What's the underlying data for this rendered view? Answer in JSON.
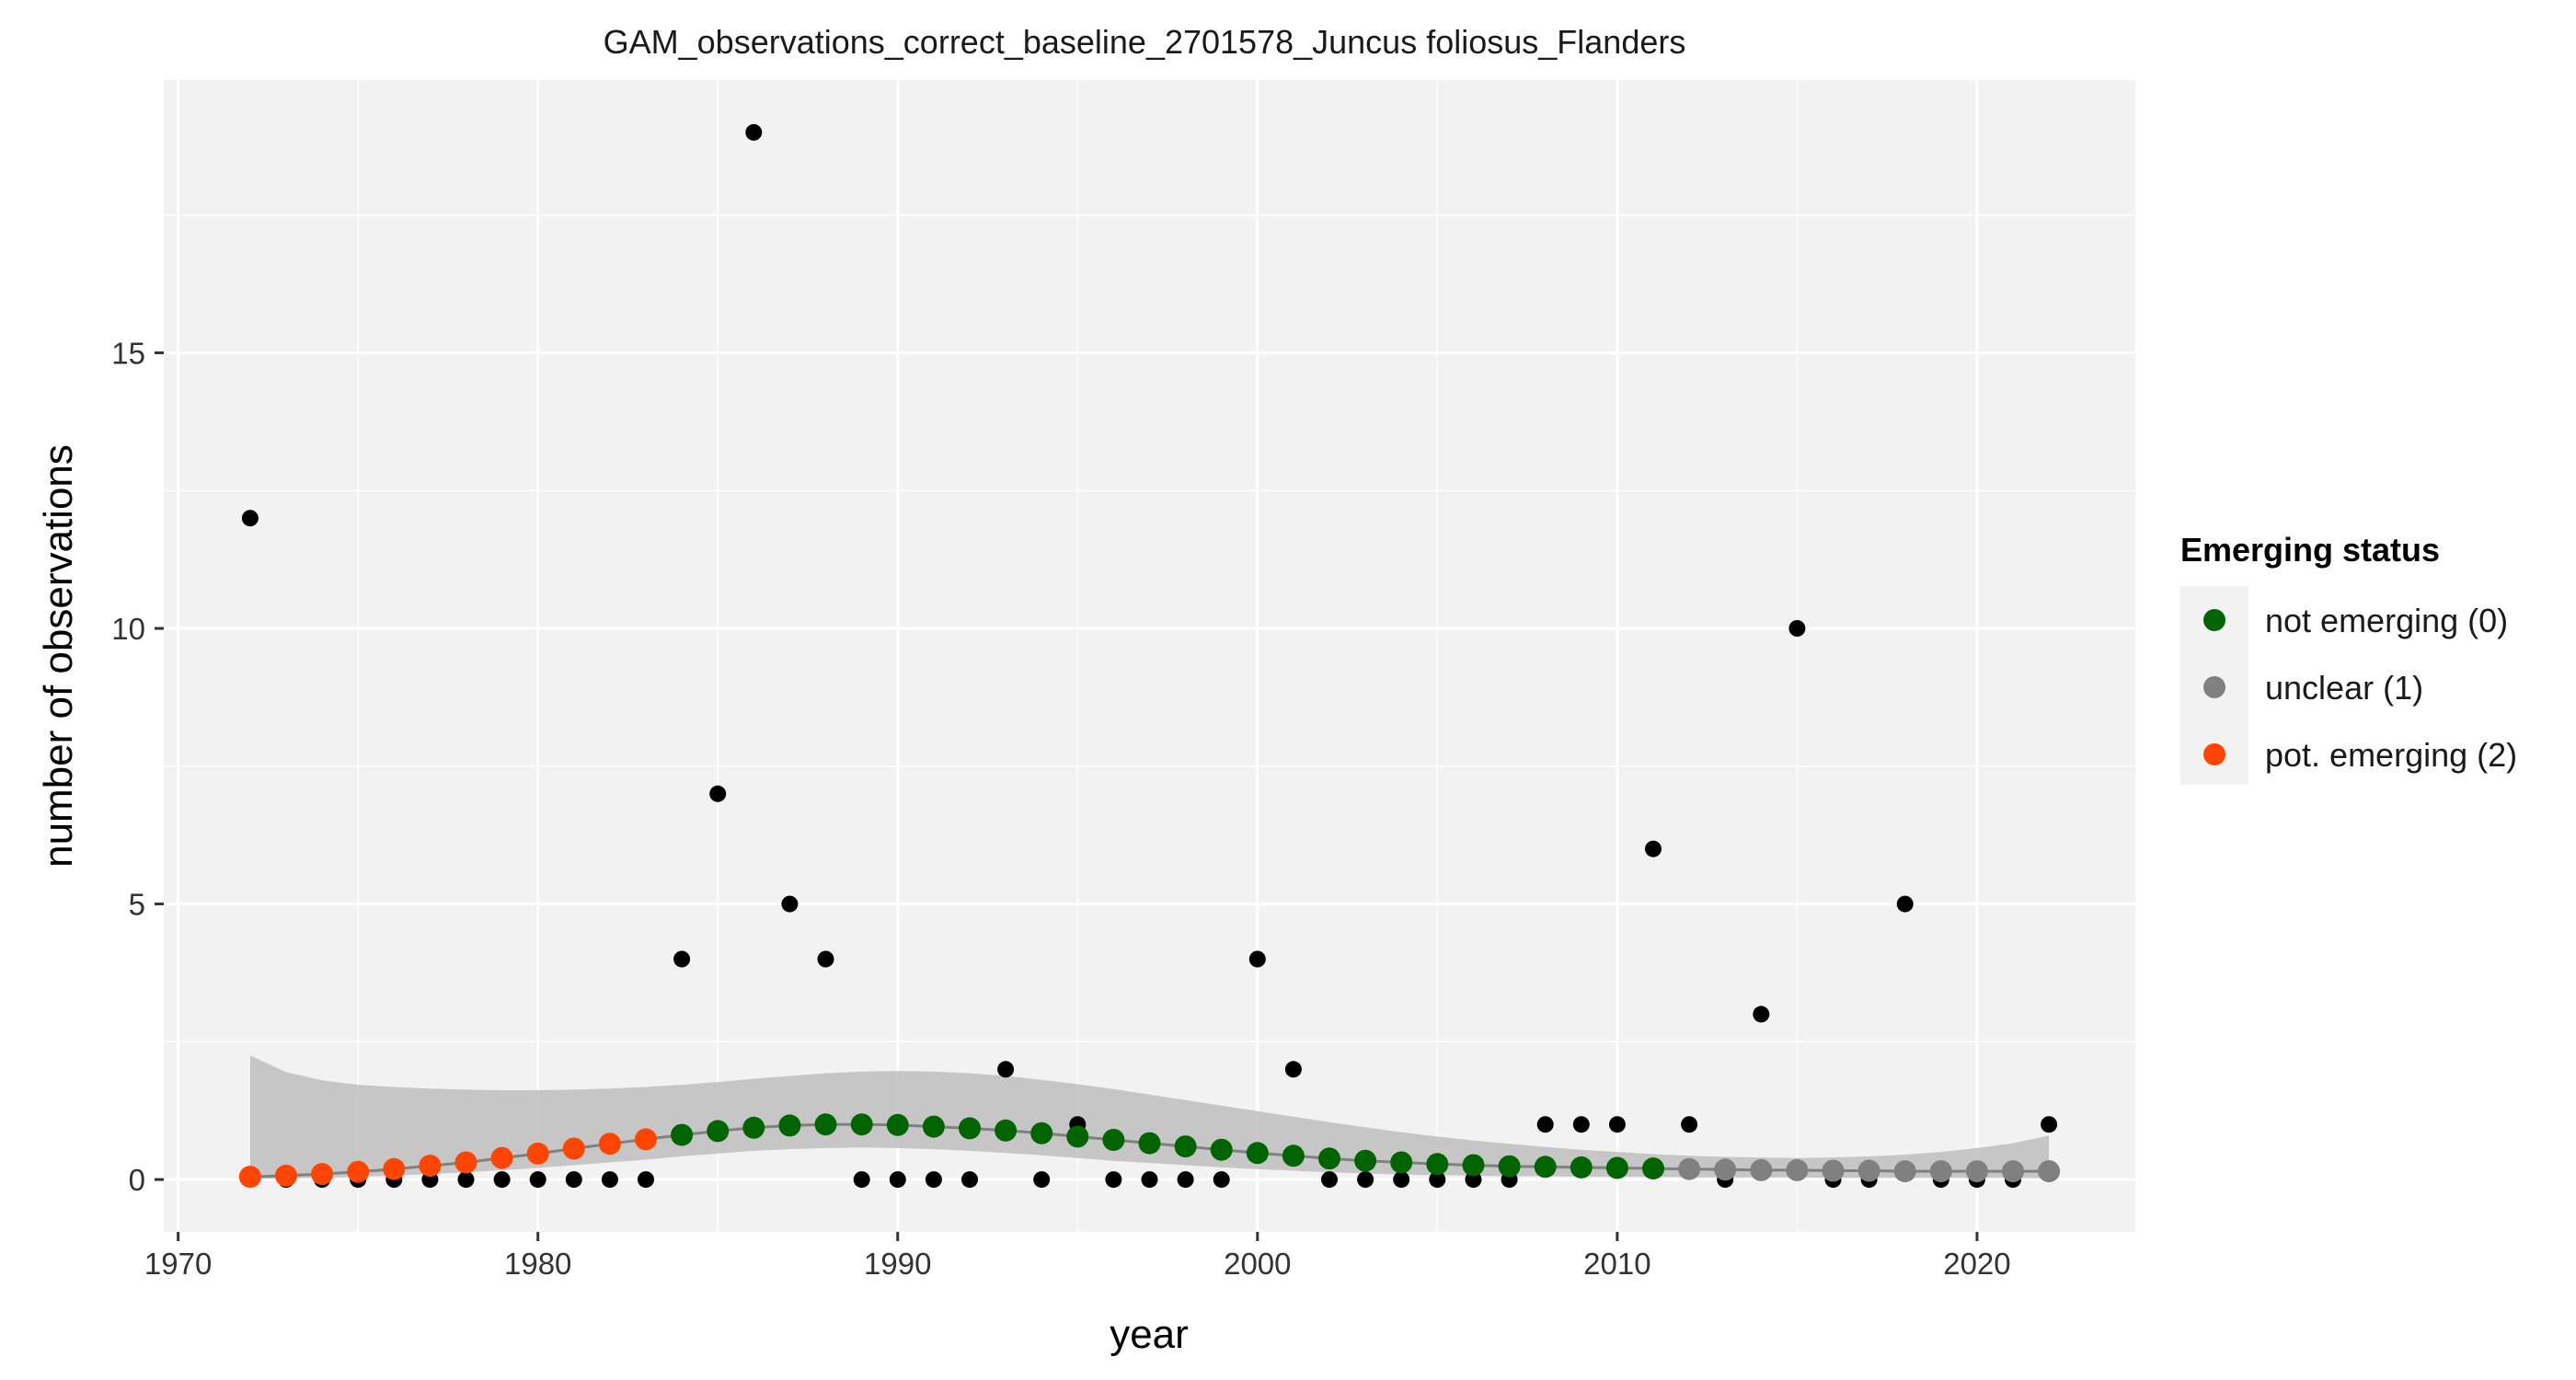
{
  "chart_data": {
    "type": "scatter",
    "title": "GAM_observations_correct_baseline_2701578_Juncus foliosus_Flanders",
    "xlabel": "year",
    "ylabel": "number of observations",
    "xlim": [
      1969.6,
      2024.4
    ],
    "ylim": [
      -0.95,
      19.95
    ],
    "x_ticks": [
      1970,
      1980,
      1990,
      2000,
      2010,
      2020
    ],
    "y_ticks": [
      0,
      5,
      10,
      15
    ],
    "grid": true,
    "legend": {
      "title": "Emerging status",
      "position": "right",
      "entries": [
        {
          "label": "not emerging (0)",
          "color": "#006400"
        },
        {
          "label": "unclear (1)",
          "color": "#808080"
        },
        {
          "label": "pot. emerging (2)",
          "color": "#FF4500"
        }
      ]
    },
    "observations": {
      "color": "#000000",
      "x": [
        1972,
        1973,
        1974,
        1975,
        1976,
        1977,
        1978,
        1979,
        1980,
        1981,
        1982,
        1983,
        1984,
        1985,
        1986,
        1987,
        1988,
        1989,
        1990,
        1991,
        1992,
        1993,
        1994,
        1995,
        1996,
        1997,
        1998,
        1999,
        2000,
        2001,
        2002,
        2003,
        2004,
        2005,
        2006,
        2007,
        2008,
        2009,
        2010,
        2011,
        2012,
        2013,
        2014,
        2015,
        2016,
        2017,
        2018,
        2019,
        2020,
        2021,
        2022
      ],
      "y": [
        12,
        0,
        0,
        0,
        0,
        0,
        0,
        0,
        0,
        0,
        0,
        0,
        4,
        7,
        19,
        5,
        4,
        0,
        0,
        0,
        0,
        2,
        0,
        1,
        0,
        0,
        0,
        0,
        4,
        2,
        0,
        0,
        0,
        0,
        0,
        0,
        1,
        1,
        1,
        6,
        1,
        0,
        3,
        10,
        0,
        0,
        5,
        0,
        0,
        0,
        1
      ]
    },
    "fit": {
      "x": [
        1972,
        1973,
        1974,
        1975,
        1976,
        1977,
        1978,
        1979,
        1980,
        1981,
        1982,
        1983,
        1984,
        1985,
        1986,
        1987,
        1988,
        1989,
        1990,
        1991,
        1992,
        1993,
        1994,
        1995,
        1996,
        1997,
        1998,
        1999,
        2000,
        2001,
        2002,
        2003,
        2004,
        2005,
        2006,
        2007,
        2008,
        2009,
        2010,
        2011,
        2012,
        2013,
        2014,
        2015,
        2016,
        2017,
        2018,
        2019,
        2020,
        2021,
        2022
      ],
      "y": [
        0.05,
        0.07,
        0.1,
        0.14,
        0.19,
        0.25,
        0.31,
        0.39,
        0.47,
        0.56,
        0.65,
        0.73,
        0.81,
        0.88,
        0.94,
        0.98,
        1.0,
        1.0,
        0.99,
        0.96,
        0.93,
        0.89,
        0.84,
        0.78,
        0.72,
        0.66,
        0.6,
        0.54,
        0.48,
        0.43,
        0.38,
        0.34,
        0.31,
        0.28,
        0.26,
        0.24,
        0.23,
        0.22,
        0.21,
        0.2,
        0.19,
        0.18,
        0.17,
        0.17,
        0.16,
        0.16,
        0.15,
        0.15,
        0.15,
        0.15,
        0.15
      ],
      "lower": [
        0.01,
        0.02,
        0.03,
        0.05,
        0.07,
        0.1,
        0.13,
        0.17,
        0.21,
        0.26,
        0.31,
        0.36,
        0.42,
        0.47,
        0.52,
        0.55,
        0.57,
        0.58,
        0.57,
        0.55,
        0.52,
        0.48,
        0.44,
        0.39,
        0.34,
        0.3,
        0.26,
        0.22,
        0.19,
        0.16,
        0.13,
        0.11,
        0.09,
        0.08,
        0.07,
        0.06,
        0.06,
        0.05,
        0.05,
        0.05,
        0.04,
        0.04,
        0.04,
        0.04,
        0.03,
        0.03,
        0.03,
        0.03,
        0.03,
        0.03,
        0.02
      ],
      "upper": [
        2.25,
        1.95,
        1.8,
        1.72,
        1.68,
        1.65,
        1.63,
        1.62,
        1.62,
        1.63,
        1.65,
        1.68,
        1.72,
        1.77,
        1.83,
        1.88,
        1.93,
        1.96,
        1.97,
        1.96,
        1.93,
        1.88,
        1.81,
        1.73,
        1.64,
        1.54,
        1.44,
        1.34,
        1.24,
        1.14,
        1.04,
        0.95,
        0.86,
        0.78,
        0.71,
        0.65,
        0.59,
        0.54,
        0.5,
        0.46,
        0.43,
        0.41,
        0.4,
        0.39,
        0.4,
        0.42,
        0.45,
        0.5,
        0.57,
        0.66,
        0.8
      ],
      "status": [
        2,
        2,
        2,
        2,
        2,
        2,
        2,
        2,
        2,
        2,
        2,
        2,
        0,
        0,
        0,
        0,
        0,
        0,
        0,
        0,
        0,
        0,
        0,
        0,
        0,
        0,
        0,
        0,
        0,
        0,
        0,
        0,
        0,
        0,
        0,
        0,
        0,
        0,
        0,
        0,
        1,
        1,
        1,
        1,
        1,
        1,
        1,
        1,
        1,
        1,
        1
      ]
    }
  }
}
